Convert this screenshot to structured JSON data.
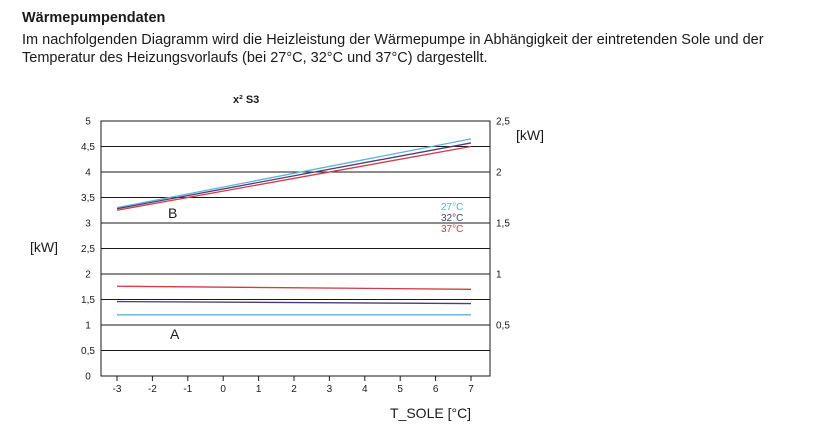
{
  "header": {
    "title": "Wärmepumpendaten",
    "intro": "Im nachfolgenden Diagramm wird die Heizleistung der Wärmepumpe in Abhängigkeit der eintretenden Sole und der Temperatur des Heizungsvorlaufs (bei 27°C, 32°C und 37°C) dargestellt."
  },
  "chart_data": {
    "type": "line",
    "title": "x² S3",
    "xlabel": "T_SOLE [°C]",
    "ylabel": "[kW]",
    "y2label": "[kW]",
    "x": [
      -3,
      -2,
      -1,
      0,
      1,
      2,
      3,
      4,
      5,
      6,
      7
    ],
    "xlim": [
      -3,
      7
    ],
    "ylim": [
      0,
      5
    ],
    "y_ticks": [
      "0",
      "0,5",
      "1",
      "1,5",
      "2",
      "2,5",
      "3",
      "3,5",
      "4",
      "4,5",
      "5"
    ],
    "y2lim": [
      0,
      2.5
    ],
    "y2_ticks": [
      "0,5",
      "1",
      "1,5",
      "2",
      "2,5"
    ],
    "grid": true,
    "curve_labels": [
      "B",
      "A"
    ],
    "legend": [
      "27°C",
      "32°C",
      "37°C"
    ],
    "colors": {
      "27": "#5bb3d9",
      "32": "#4a3e7a",
      "37": "#d63a44"
    },
    "series": [
      {
        "name": "27°C",
        "group": "B",
        "axis": "y",
        "color_key": "27",
        "points": [
          [
            -3,
            3.3
          ],
          [
            7,
            4.65
          ]
        ]
      },
      {
        "name": "32°C",
        "group": "B",
        "axis": "y",
        "color_key": "32",
        "points": [
          [
            -3,
            3.28
          ],
          [
            7,
            4.57
          ]
        ]
      },
      {
        "name": "37°C",
        "group": "B",
        "axis": "y",
        "color_key": "37",
        "points": [
          [
            -3,
            3.25
          ],
          [
            7,
            4.5
          ]
        ]
      },
      {
        "name": "27°C",
        "group": "A",
        "axis": "y2",
        "color_key": "27",
        "points": [
          [
            -3,
            0.6
          ],
          [
            7,
            0.6
          ]
        ]
      },
      {
        "name": "32°C",
        "group": "A",
        "axis": "y2",
        "color_key": "32",
        "points": [
          [
            -3,
            0.73
          ],
          [
            7,
            0.71
          ]
        ]
      },
      {
        "name": "37°C",
        "group": "A",
        "axis": "y2",
        "color_key": "37",
        "points": [
          [
            -3,
            0.88
          ],
          [
            7,
            0.85
          ]
        ]
      }
    ]
  }
}
